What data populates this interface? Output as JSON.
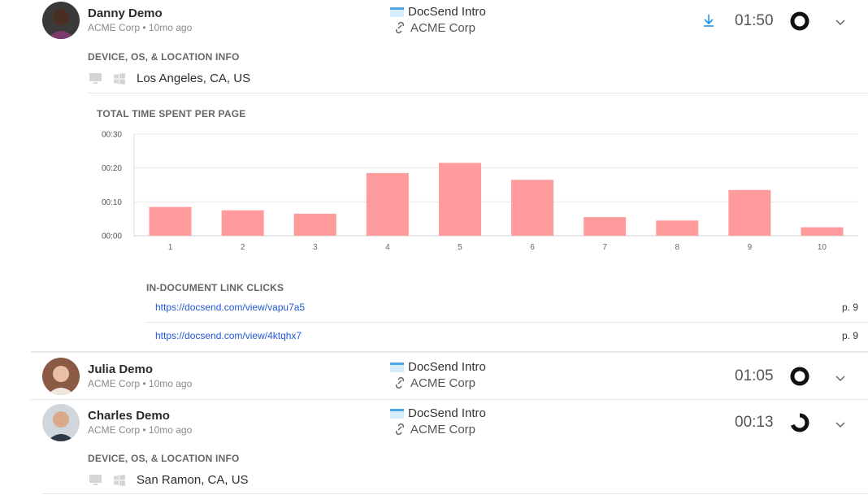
{
  "visitors": [
    {
      "name": "Danny Demo",
      "company": "ACME Corp",
      "ago": "10mo ago",
      "document": "DocSend Intro",
      "link_name": "ACME Corp",
      "duration": "01:50",
      "completion": 1.0,
      "device_label": "DEVICE, OS, & LOCATION INFO",
      "location": "Los Angeles, CA, US"
    },
    {
      "name": "Julia Demo",
      "company": "ACME Corp",
      "ago": "10mo ago",
      "document": "DocSend Intro",
      "link_name": "ACME Corp",
      "duration": "01:05",
      "completion": 1.0
    },
    {
      "name": "Charles Demo",
      "company": "ACME Corp",
      "ago": "10mo ago",
      "document": "DocSend Intro",
      "link_name": "ACME Corp",
      "duration": "00:13",
      "completion": 0.6,
      "device_label": "DEVICE, OS, & LOCATION INFO",
      "location": "San Ramon, CA, US"
    }
  ],
  "separator": "•",
  "chart_data": {
    "type": "bar",
    "title": "TOTAL TIME SPENT PER PAGE",
    "categories": [
      "1",
      "2",
      "3",
      "4",
      "5",
      "6",
      "7",
      "8",
      "9",
      "10"
    ],
    "values": [
      8.5,
      7.5,
      6.5,
      18.5,
      21.5,
      16.5,
      5.5,
      4.5,
      13.5,
      2.5
    ],
    "yticks": [
      "00:00",
      "00:10",
      "00:20",
      "00:30"
    ],
    "ylim": [
      0,
      30
    ],
    "bar_color": "#ff9b9d"
  },
  "link_clicks": {
    "title": "IN-DOCUMENT LINK CLICKS",
    "items": [
      {
        "url": "https://docsend.com/view/vapu7a5",
        "page": "p. 9"
      },
      {
        "url": "https://docsend.com/view/4ktqhx7",
        "page": "p. 9"
      }
    ]
  },
  "colors": {
    "accent": "#1a8fe6",
    "link": "#2458d6"
  }
}
